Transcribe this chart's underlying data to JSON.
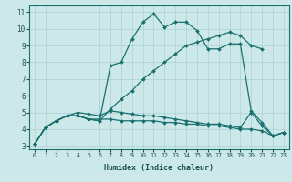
{
  "xlabel": "Humidex (Indice chaleur)",
  "ylabel": "",
  "xlim": [
    -0.5,
    23.5
  ],
  "ylim": [
    2.8,
    11.4
  ],
  "xtick_labels": [
    "0",
    "1",
    "2",
    "3",
    "4",
    "5",
    "6",
    "7",
    "8",
    "9",
    "10",
    "11",
    "12",
    "13",
    "14",
    "15",
    "16",
    "17",
    "18",
    "19",
    "20",
    "21",
    "22",
    "23"
  ],
  "ytick_labels": [
    "3",
    "4",
    "5",
    "6",
    "7",
    "8",
    "9",
    "10",
    "11"
  ],
  "background_color": "#cce8e8",
  "grid_color": "#aad0d0",
  "line_color": "#1a7070",
  "lines": [
    {
      "x": [
        0,
        1,
        2,
        3,
        4,
        5,
        6,
        7,
        8,
        9,
        10,
        11,
        12,
        13,
        14,
        15,
        16,
        17,
        18,
        19,
        20,
        21,
        22,
        23
      ],
      "y": [
        3.1,
        4.1,
        4.5,
        4.8,
        4.8,
        4.6,
        4.5,
        7.8,
        8.0,
        9.4,
        10.4,
        10.9,
        10.1,
        10.4,
        10.4,
        9.9,
        8.8,
        8.8,
        9.1,
        9.1,
        5.1,
        4.4,
        3.6,
        3.8
      ]
    },
    {
      "x": [
        0,
        1,
        2,
        3,
        4,
        5,
        6,
        7,
        8,
        9,
        10,
        11,
        12,
        13,
        14,
        15,
        16,
        17,
        18,
        19,
        20,
        21
      ],
      "y": [
        3.1,
        4.1,
        4.5,
        4.8,
        4.8,
        4.6,
        4.5,
        5.2,
        5.8,
        6.3,
        7.0,
        7.5,
        8.0,
        8.5,
        9.0,
        9.2,
        9.4,
        9.6,
        9.8,
        9.6,
        9.0,
        8.8
      ]
    },
    {
      "x": [
        0,
        1,
        2,
        3,
        4,
        5,
        6,
        7,
        8,
        9,
        10,
        11,
        12,
        13,
        14,
        15,
        16,
        17,
        18,
        19,
        20,
        21,
        22,
        23
      ],
      "y": [
        3.1,
        4.1,
        4.5,
        4.8,
        4.8,
        4.6,
        4.6,
        4.6,
        4.5,
        4.5,
        4.5,
        4.5,
        4.4,
        4.4,
        4.3,
        4.3,
        4.2,
        4.2,
        4.1,
        4.0,
        4.0,
        3.9,
        3.6,
        3.8
      ]
    },
    {
      "x": [
        0,
        1,
        2,
        3,
        4,
        5,
        6,
        7,
        8,
        9,
        10,
        11,
        12,
        13,
        14,
        15,
        16,
        17,
        18,
        19,
        20,
        21,
        22,
        23
      ],
      "y": [
        3.1,
        4.1,
        4.5,
        4.8,
        5.0,
        4.9,
        4.8,
        5.1,
        5.0,
        4.9,
        4.8,
        4.8,
        4.7,
        4.6,
        4.5,
        4.4,
        4.3,
        4.3,
        4.2,
        4.1,
        5.0,
        4.2,
        3.6,
        3.8
      ]
    }
  ]
}
